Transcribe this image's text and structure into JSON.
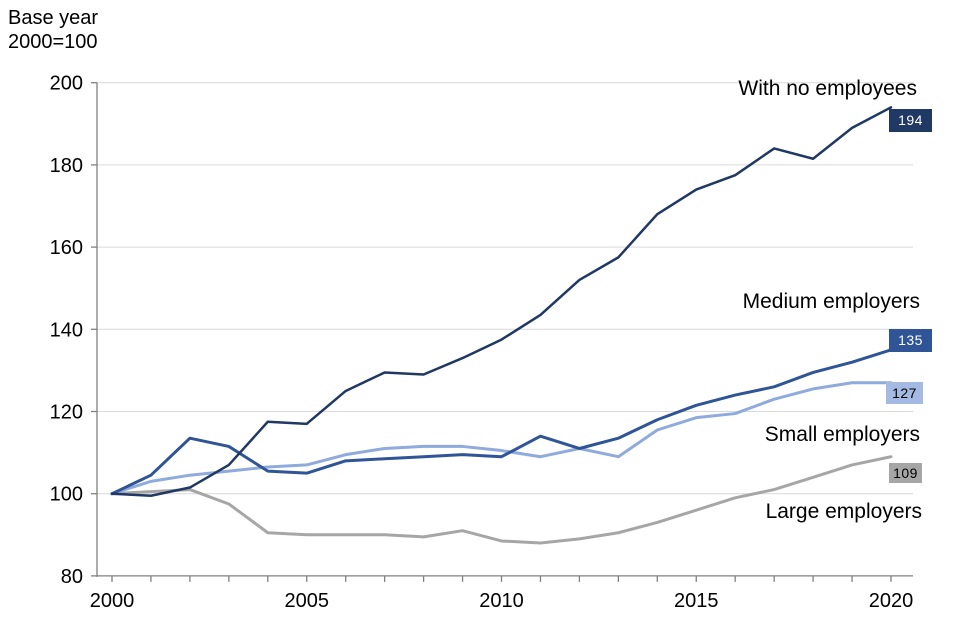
{
  "header": {
    "note_line1": "Base year",
    "note_line2": "2000=100"
  },
  "chart_data": {
    "type": "line",
    "title": "",
    "xlabel": "",
    "ylabel": "Base year 2000=100",
    "x": [
      2000,
      2001,
      2002,
      2003,
      2004,
      2005,
      2006,
      2007,
      2008,
      2009,
      2010,
      2011,
      2012,
      2013,
      2014,
      2015,
      2016,
      2017,
      2018,
      2019,
      2020
    ],
    "x_tick_labels": [
      2000,
      2005,
      2010,
      2015,
      2020
    ],
    "y_ticks": [
      80,
      100,
      120,
      140,
      160,
      180,
      200
    ],
    "ylim": [
      80,
      200
    ],
    "grid": "horizontal-only",
    "legend_position": "inline-right-annotations",
    "axis_color": "#808080",
    "gridline_color": "#d9d9d9",
    "series": [
      {
        "name": "With no employees",
        "color": "#1F3864",
        "end_value_label": "194",
        "badge_bg": "#1F3864",
        "badge_text_color": "#ffffff",
        "values": [
          100,
          99.5,
          101.5,
          107,
          117.5,
          117,
          125,
          129.5,
          129,
          133,
          137.5,
          143.5,
          152,
          157.5,
          168,
          174,
          177.5,
          184,
          181.5,
          189,
          194
        ]
      },
      {
        "name": "Medium employers",
        "color": "#2F5597",
        "end_value_label": "135",
        "badge_bg": "#2F5597",
        "badge_text_color": "#ffffff",
        "values": [
          100,
          104.5,
          113.5,
          111.5,
          105.5,
          105,
          108,
          108.5,
          109,
          109.5,
          109,
          114,
          111,
          113.5,
          118,
          121.5,
          124,
          126,
          129.5,
          132,
          135
        ]
      },
      {
        "name": "Small employers",
        "color": "#8FAADC",
        "end_value_label": "127",
        "badge_bg": "#A4BAE2",
        "badge_text_color": "#000000",
        "values": [
          100,
          103,
          104.5,
          105.5,
          106.5,
          107,
          109.5,
          111,
          111.5,
          111.5,
          110.5,
          109,
          111,
          109,
          115.5,
          118.5,
          119.5,
          123,
          125.5,
          127,
          127
        ]
      },
      {
        "name": "Large employers",
        "color": "#A6A6A6",
        "end_value_label": "109",
        "badge_bg": "#A6A6A6",
        "badge_text_color": "#000000",
        "values": [
          100,
          100.5,
          101,
          97.5,
          90.5,
          90,
          90,
          90,
          89.5,
          91,
          88.5,
          88,
          89,
          90.5,
          93,
          96,
          99,
          101,
          104,
          107,
          109
        ]
      }
    ]
  }
}
